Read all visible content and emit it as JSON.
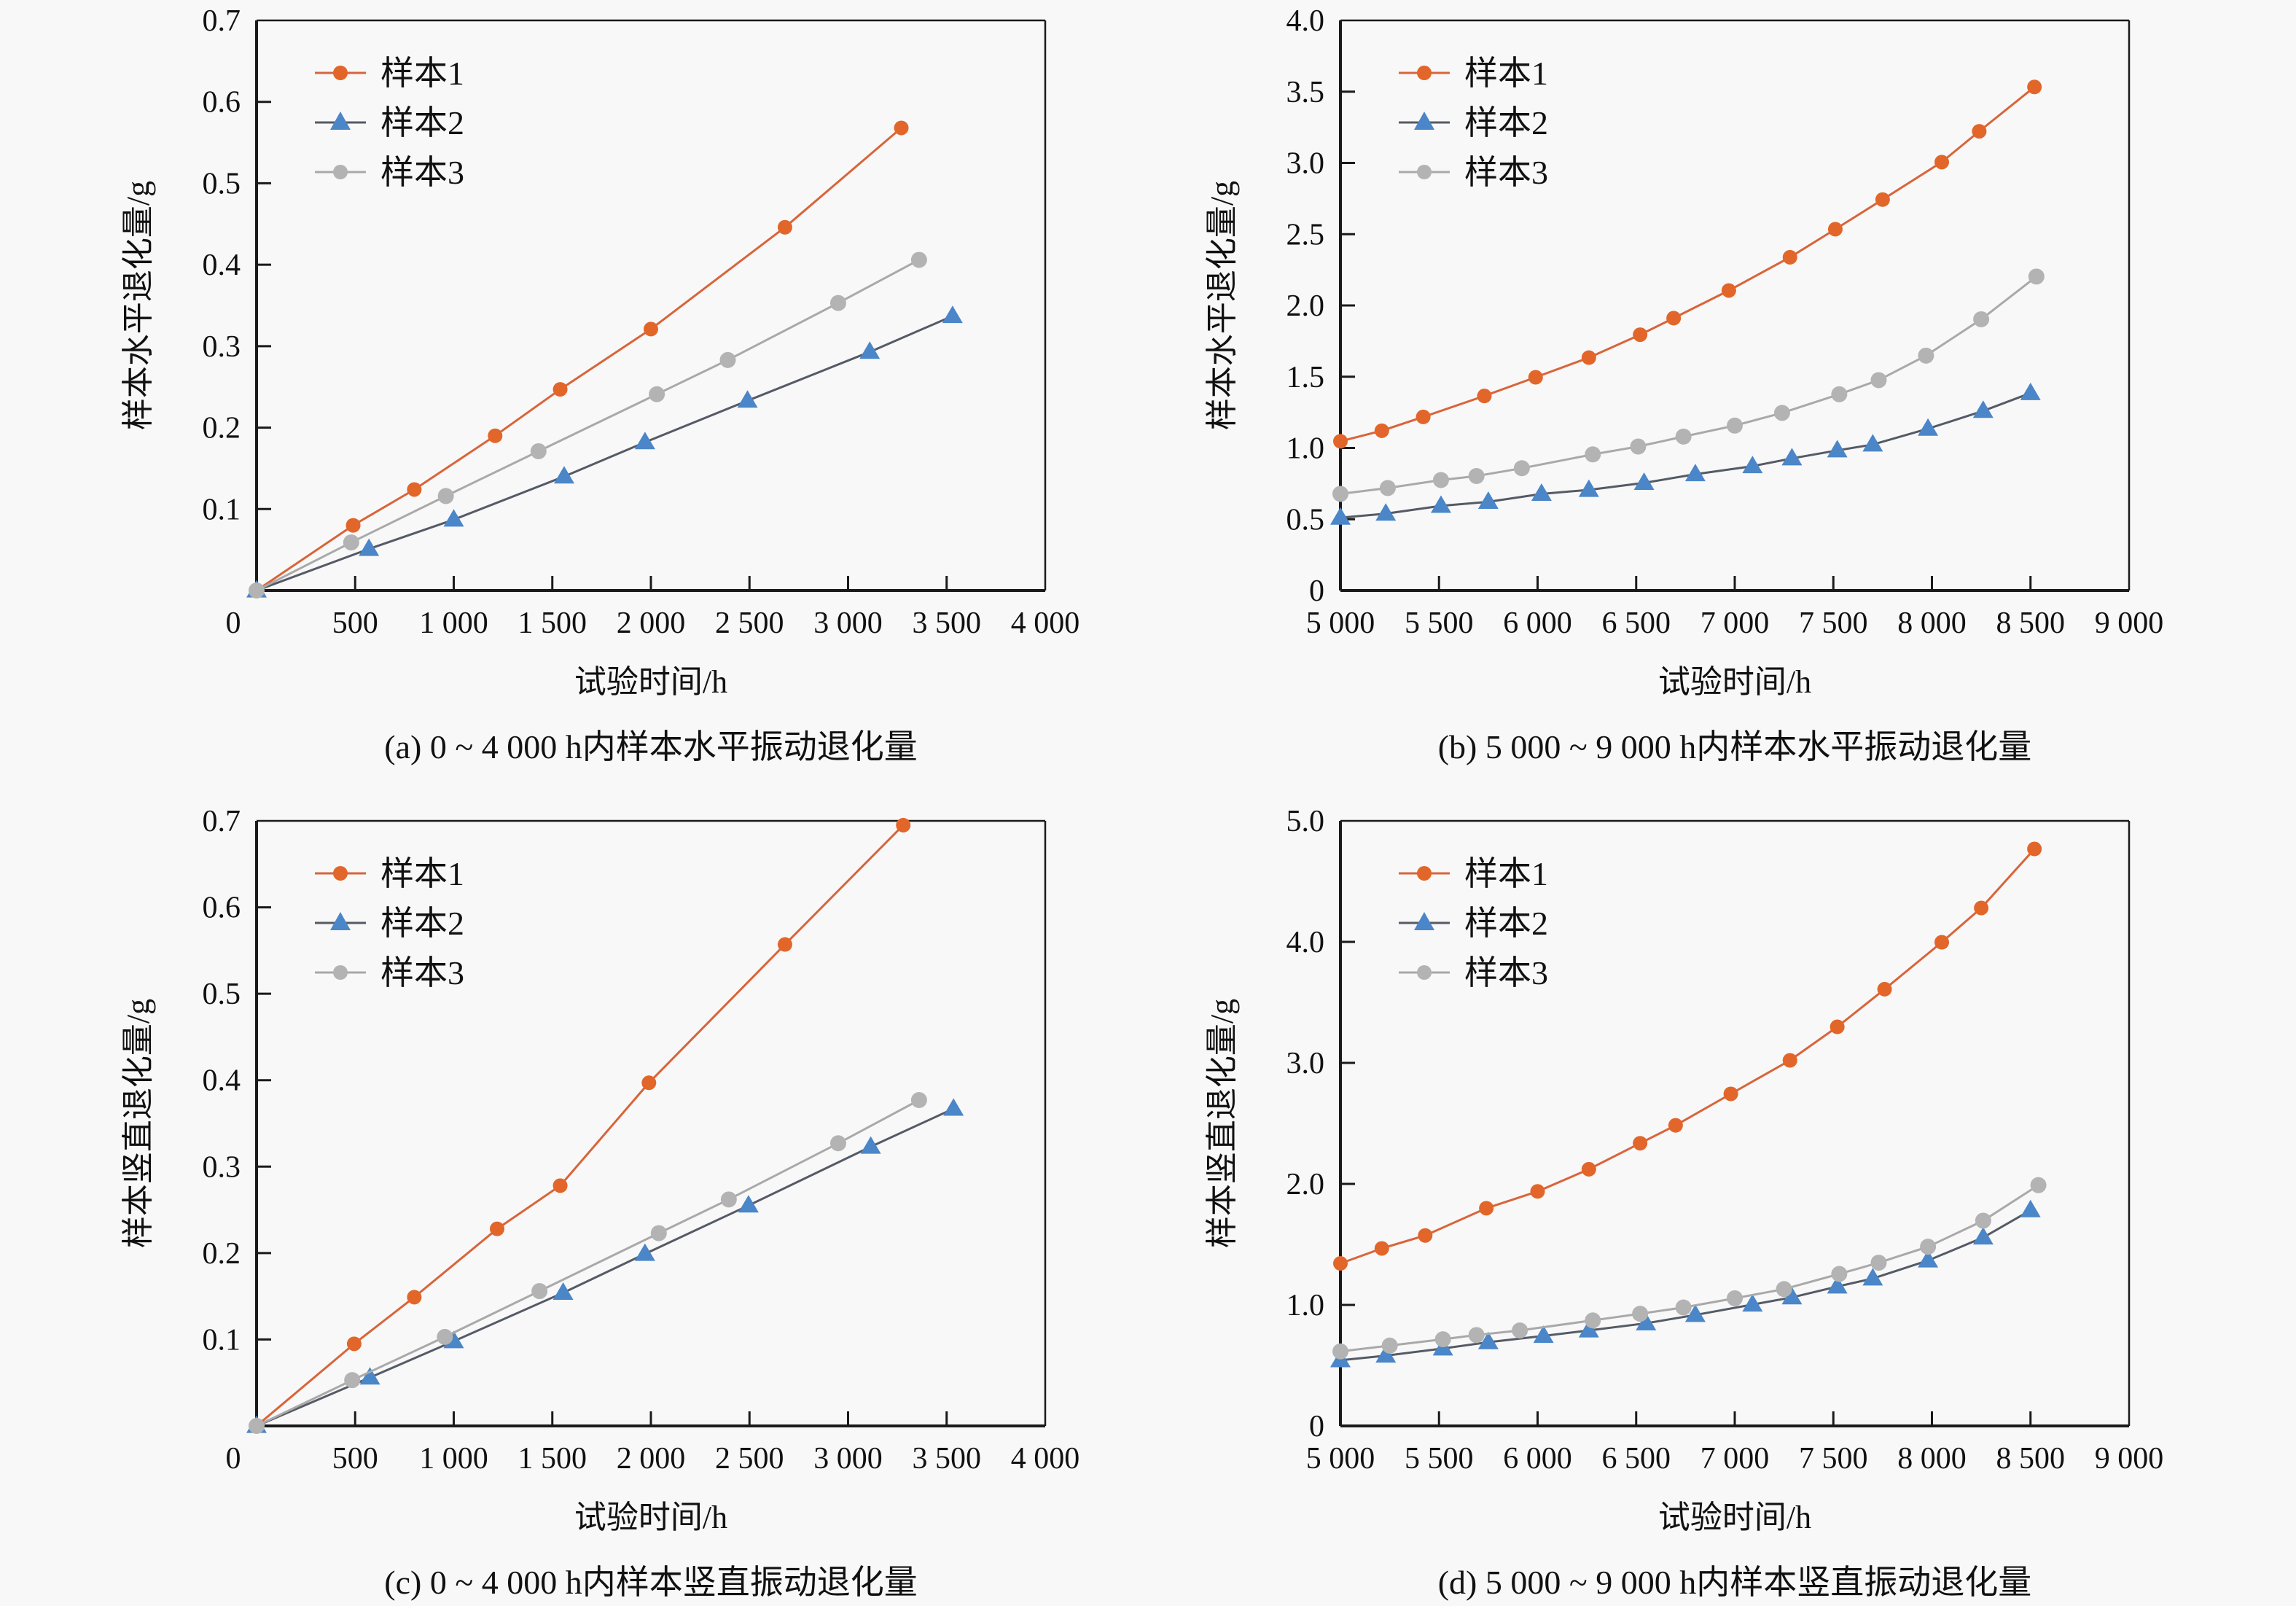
{
  "figure": {
    "colors": {
      "background": "#f8f8f8",
      "sample1_marker": "#e2662a",
      "sample1_line": "#d9643a",
      "sample2_marker": "#4a86c8",
      "sample2_line": "#555a66",
      "sample3_marker": "#b3b3b3",
      "sample3_line": "#a9a9a9"
    }
  },
  "chart_data": [
    {
      "id": "a",
      "type": "line",
      "caption": "(a) 0 ~ 4 000 h内样本水平振动退化量",
      "xlabel": "试验时间/h",
      "ylabel": "样本水平退化量/g",
      "xlim": [
        0,
        4000
      ],
      "ylim": [
        0,
        0.7
      ],
      "xticks": [
        0,
        500,
        1000,
        1500,
        2000,
        2500,
        3000,
        3500,
        4000
      ],
      "xtick_labels": [
        "0",
        "500",
        "1 000",
        "1 500",
        "2 000",
        "2 500",
        "3 000",
        "3 500",
        "4 000"
      ],
      "yticks": [
        0.1,
        0.2,
        0.3,
        0.4,
        0.5,
        0.6,
        0.7
      ],
      "ytick_labels": [
        "0.1",
        "0.2",
        "0.3",
        "0.4",
        "0.5",
        "0.6",
        "0.7"
      ],
      "grid": false,
      "legend_position": "top-left",
      "series": [
        {
          "name": "样本1",
          "marker": "circle",
          "x": [
            0,
            490,
            800,
            1210,
            1540,
            2000,
            2680,
            3270
          ],
          "y": [
            0,
            0.08,
            0.124,
            0.19,
            0.247,
            0.321,
            0.446,
            0.568
          ]
        },
        {
          "name": "样本2",
          "marker": "triangle",
          "x": [
            0,
            570,
            1000,
            1560,
            1970,
            2490,
            3110,
            3530
          ],
          "y": [
            0,
            0.051,
            0.087,
            0.14,
            0.182,
            0.233,
            0.293,
            0.337
          ]
        },
        {
          "name": "样本3",
          "marker": "circle",
          "x": [
            0,
            480,
            960,
            1430,
            2030,
            2390,
            2950,
            3360
          ],
          "y": [
            0,
            0.059,
            0.116,
            0.171,
            0.241,
            0.283,
            0.353,
            0.406
          ]
        }
      ]
    },
    {
      "id": "b",
      "type": "line",
      "caption": "(b) 5 000 ~ 9 000 h内样本水平振动退化量",
      "xlabel": "试验时间/h",
      "ylabel": "样本水平退化量/g",
      "xlim": [
        5000,
        9000
      ],
      "ylim": [
        0,
        4.0
      ],
      "xticks": [
        5000,
        5500,
        6000,
        6500,
        7000,
        7500,
        8000,
        8500,
        9000
      ],
      "xtick_labels": [
        "5 000",
        "5 500",
        "6 000",
        "6 500",
        "7 000",
        "7 500",
        "8 000",
        "8 500",
        "9 000"
      ],
      "yticks": [
        0,
        0.5,
        1.0,
        1.5,
        2.0,
        2.5,
        3.0,
        3.5,
        4.0
      ],
      "ytick_labels": [
        "0",
        "0.5",
        "1.0",
        "1.5",
        "2.0",
        "2.5",
        "3.0",
        "3.5",
        "4.0"
      ],
      "grid": false,
      "legend_position": "top-left",
      "series": [
        {
          "name": "样本1",
          "marker": "circle",
          "x": [
            5000,
            5210,
            5420,
            5730,
            5990,
            6260,
            6520,
            6690,
            6970,
            7280,
            7510,
            7750,
            8050,
            8240,
            8520
          ],
          "y": [
            1.047,
            1.121,
            1.218,
            1.365,
            1.496,
            1.634,
            1.795,
            1.911,
            2.105,
            2.338,
            2.535,
            2.743,
            3.006,
            3.222,
            3.533
          ]
        },
        {
          "name": "样本2",
          "marker": "triangle",
          "x": [
            5000,
            5230,
            5510,
            5750,
            6020,
            6260,
            6540,
            6800,
            7090,
            7290,
            7520,
            7700,
            7980,
            8260,
            8500
          ],
          "y": [
            0.511,
            0.539,
            0.594,
            0.622,
            0.678,
            0.706,
            0.755,
            0.816,
            0.872,
            0.927,
            0.983,
            1.024,
            1.135,
            1.26,
            1.385
          ]
        },
        {
          "name": "样本3",
          "marker": "circle",
          "x": [
            5000,
            5240,
            5510,
            5690,
            5920,
            6280,
            6510,
            6740,
            7000,
            7240,
            7530,
            7730,
            7970,
            8250,
            8530
          ],
          "y": [
            0.678,
            0.719,
            0.775,
            0.803,
            0.858,
            0.955,
            1.01,
            1.08,
            1.157,
            1.246,
            1.377,
            1.476,
            1.648,
            1.903,
            2.203
          ]
        }
      ]
    },
    {
      "id": "c",
      "type": "line",
      "caption": "(c) 0 ~ 4 000 h内样本竖直振动退化量",
      "xlabel": "试验时间/h",
      "ylabel": "样本竖直退化量/g",
      "xlim": [
        0,
        4000
      ],
      "ylim": [
        0,
        0.7
      ],
      "xticks": [
        0,
        500,
        1000,
        1500,
        2000,
        2500,
        3000,
        3500,
        4000
      ],
      "xtick_labels": [
        "0",
        "500",
        "1 000",
        "1 500",
        "2 000",
        "2 500",
        "3 000",
        "3 500",
        "4 000"
      ],
      "yticks": [
        0.1,
        0.2,
        0.3,
        0.4,
        0.5,
        0.6,
        0.7
      ],
      "ytick_labels": [
        "0.1",
        "0.2",
        "0.3",
        "0.4",
        "0.5",
        "0.6",
        "0.7"
      ],
      "grid": false,
      "legend_position": "top-left",
      "series": [
        {
          "name": "样本1",
          "marker": "circle",
          "x": [
            0,
            495,
            800,
            1220,
            1540,
            1990,
            2680,
            3280
          ],
          "y": [
            0,
            0.095,
            0.149,
            0.228,
            0.278,
            0.397,
            0.557,
            0.695
          ]
        },
        {
          "name": "样本2",
          "marker": "triangle",
          "x": [
            0,
            575,
            1000,
            1555,
            1970,
            2495,
            3115,
            3535
          ],
          "y": [
            0,
            0.056,
            0.098,
            0.154,
            0.199,
            0.255,
            0.323,
            0.367
          ]
        },
        {
          "name": "样本3",
          "marker": "circle",
          "x": [
            0,
            485,
            955,
            1435,
            2040,
            2395,
            2950,
            3360
          ],
          "y": [
            0,
            0.053,
            0.103,
            0.156,
            0.223,
            0.262,
            0.327,
            0.377
          ]
        }
      ]
    },
    {
      "id": "d",
      "type": "line",
      "caption": "(d) 5 000 ~ 9 000 h内样本竖直振动退化量",
      "xlabel": "试验时间/h",
      "ylabel": "样本竖直退化量/g",
      "xlim": [
        5000,
        9000
      ],
      "ylim": [
        0,
        5.0
      ],
      "xticks": [
        5000,
        5500,
        6000,
        6500,
        7000,
        7500,
        8000,
        8500,
        9000
      ],
      "xtick_labels": [
        "5 000",
        "5 500",
        "6 000",
        "6 500",
        "7 000",
        "7 500",
        "8 000",
        "8 500",
        "9 000"
      ],
      "yticks": [
        0,
        1.0,
        2.0,
        3.0,
        4.0,
        5.0
      ],
      "ytick_labels": [
        "0",
        "1.0",
        "2.0",
        "3.0",
        "4.0",
        "5.0"
      ],
      "grid": false,
      "legend_position": "top-left",
      "series": [
        {
          "name": "样本1",
          "marker": "circle",
          "x": [
            5000,
            5210,
            5430,
            5740,
            6000,
            6260,
            6520,
            6700,
            6980,
            7280,
            7520,
            7760,
            8050,
            8250,
            8520
          ],
          "y": [
            1.343,
            1.467,
            1.574,
            1.799,
            1.938,
            2.121,
            2.336,
            2.484,
            2.744,
            3.021,
            3.298,
            3.609,
            3.997,
            4.28,
            4.768
          ]
        },
        {
          "name": "样本2",
          "marker": "triangle",
          "x": [
            5000,
            5230,
            5520,
            5750,
            6030,
            6260,
            6550,
            6800,
            7090,
            7290,
            7520,
            7700,
            7980,
            8260,
            8500
          ],
          "y": [
            0.543,
            0.581,
            0.64,
            0.692,
            0.744,
            0.789,
            0.848,
            0.917,
            1.003,
            1.062,
            1.152,
            1.218,
            1.367,
            1.557,
            1.782
          ]
        },
        {
          "name": "样本3",
          "marker": "circle",
          "x": [
            5000,
            5250,
            5520,
            5690,
            5910,
            6280,
            6520,
            6740,
            7000,
            7250,
            7530,
            7730,
            7980,
            8260,
            8540
          ],
          "y": [
            0.616,
            0.664,
            0.716,
            0.751,
            0.789,
            0.872,
            0.927,
            0.979,
            1.055,
            1.131,
            1.256,
            1.349,
            1.481,
            1.696,
            1.99
          ]
        }
      ]
    }
  ]
}
